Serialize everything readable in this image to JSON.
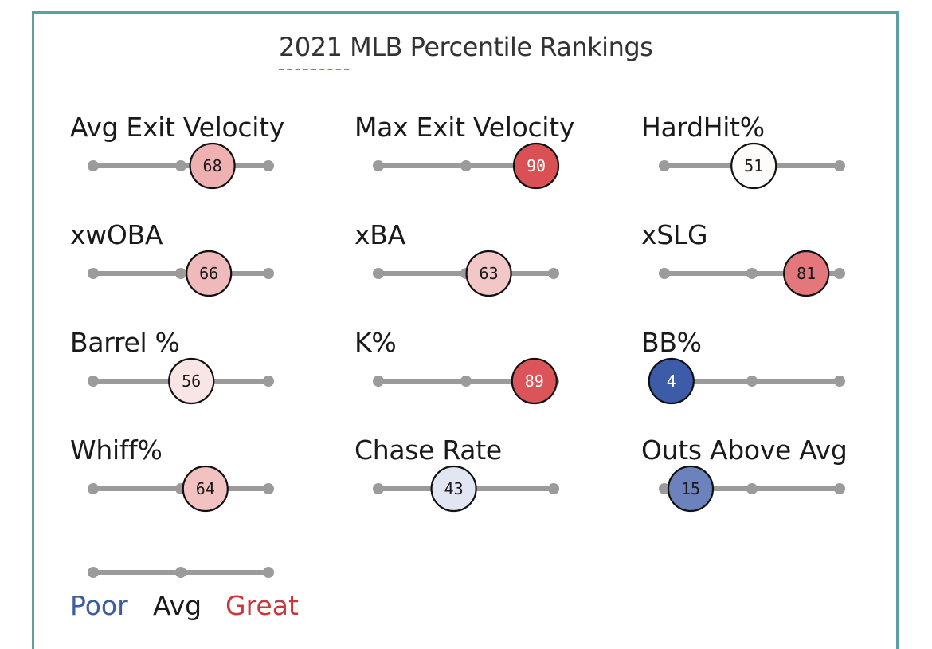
{
  "title": "2021 MLB Percentile Rankings",
  "chart_data": {
    "type": "percentile-rankings",
    "title": "2021 MLB Percentile Rankings",
    "scale": [
      0,
      100
    ],
    "metrics": [
      {
        "label": "Avg Exit Velocity",
        "value": 68
      },
      {
        "label": "Max Exit Velocity",
        "value": 90
      },
      {
        "label": "HardHit%",
        "value": 51
      },
      {
        "label": "xwOBA",
        "value": 66
      },
      {
        "label": "xBA",
        "value": 63
      },
      {
        "label": "xSLG",
        "value": 81
      },
      {
        "label": "Barrel %",
        "value": 56
      },
      {
        "label": "K%",
        "value": 89
      },
      {
        "label": "BB%",
        "value": 4
      },
      {
        "label": "Whiff%",
        "value": 64
      },
      {
        "label": "Chase Rate",
        "value": 43
      },
      {
        "label": "Outs Above Avg",
        "value": 15
      }
    ],
    "legend": {
      "poor": "Poor",
      "avg": "Avg",
      "great": "Great"
    }
  },
  "colors": {
    "border": "#5f9ea0",
    "track": "#9b9b9b",
    "poor": "#3c5ba8",
    "avg": "#ffffff",
    "great": "#d63a3f",
    "poor_text": "#3f5ea0",
    "great_text": "#c8373b"
  }
}
